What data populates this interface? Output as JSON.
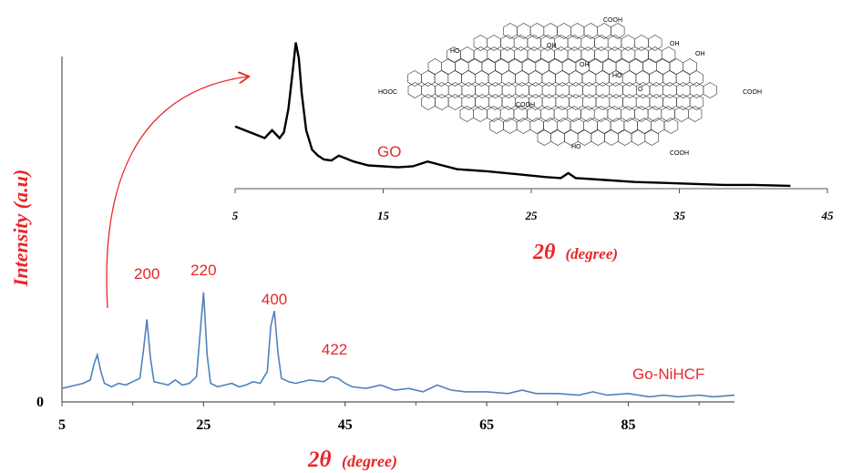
{
  "chart_data": [
    {
      "type": "line",
      "name": "main-xrd",
      "xlabel_prefix": "2θ",
      "xlabel_unit": "(degree)",
      "ylabel": "Intensity (a.u)",
      "y_tick_labels": [
        "0"
      ],
      "x_tick_labels": [
        "5",
        "25",
        "45",
        "65",
        "85"
      ],
      "xlim": [
        5,
        100
      ],
      "series": [
        {
          "name": "Go-NiHCF",
          "color": "#4f81bd",
          "x": [
            5,
            7,
            8,
            9,
            9.5,
            10,
            10.5,
            11,
            12,
            13,
            14,
            15,
            16,
            16.5,
            17,
            17.5,
            18,
            19,
            20,
            21,
            22,
            23,
            24,
            24.5,
            25,
            25.5,
            26,
            27,
            28,
            29,
            30,
            31,
            32,
            33,
            34,
            34.5,
            35,
            35.5,
            36,
            37,
            38,
            40,
            42,
            43,
            44,
            45,
            46,
            48,
            50,
            52,
            54,
            56,
            58,
            60,
            62,
            65,
            68,
            70,
            72,
            75,
            78,
            80,
            82,
            85,
            88,
            90,
            92,
            95,
            97,
            100
          ],
          "y": [
            8,
            10,
            11,
            13,
            22,
            28,
            18,
            11,
            9,
            11,
            10,
            12,
            14,
            30,
            49,
            26,
            12,
            11,
            10,
            13,
            10,
            11,
            15,
            40,
            65,
            28,
            11,
            9,
            10,
            11,
            9,
            10,
            12,
            11,
            18,
            45,
            54,
            30,
            14,
            12,
            11,
            13,
            12,
            15,
            14,
            11,
            9,
            8,
            10,
            7,
            8,
            6,
            10,
            7,
            6,
            6,
            5,
            7,
            5,
            5,
            4,
            6,
            4,
            5,
            3,
            4,
            3,
            4,
            3,
            4
          ]
        }
      ],
      "peak_labels": [
        {
          "label": "200",
          "x": 17
        },
        {
          "label": "220",
          "x": 25
        },
        {
          "label": "400",
          "x": 35
        },
        {
          "label": "422",
          "x": 43.5
        }
      ]
    },
    {
      "type": "line",
      "name": "inset-xrd",
      "xlabel_prefix": "2θ",
      "xlabel_unit": "(degree)",
      "x_tick_labels": [
        "5",
        "15",
        "25",
        "35",
        "45"
      ],
      "xlim": [
        5,
        45
      ],
      "series": [
        {
          "name": "GO",
          "color": "#000000",
          "x": [
            5,
            6,
            7,
            7.5,
            8,
            8.3,
            8.6,
            8.9,
            9.1,
            9.3,
            9.5,
            9.8,
            10.2,
            10.6,
            11,
            11.5,
            12,
            13,
            14,
            15,
            16,
            17,
            18,
            19,
            20,
            22,
            24,
            26,
            27,
            27.5,
            28,
            30,
            32,
            34,
            36,
            38,
            40,
            42.5
          ],
          "y": [
            62,
            56,
            50,
            58,
            50,
            56,
            80,
            120,
            148,
            132,
            96,
            58,
            38,
            32,
            28,
            27,
            32,
            26,
            22,
            21,
            20,
            21,
            26,
            22,
            18,
            16,
            13,
            10,
            9,
            14,
            9,
            7,
            5,
            4,
            3,
            2,
            2,
            1
          ]
        }
      ]
    }
  ],
  "arrow_color": "#e8262a",
  "structure": {
    "labels": [
      "COOH",
      "HO",
      "OH",
      "OH",
      "OH",
      "HOOC",
      "OH",
      "HO",
      "O",
      "COOH",
      "COOH",
      "HO",
      "COOH"
    ]
  }
}
